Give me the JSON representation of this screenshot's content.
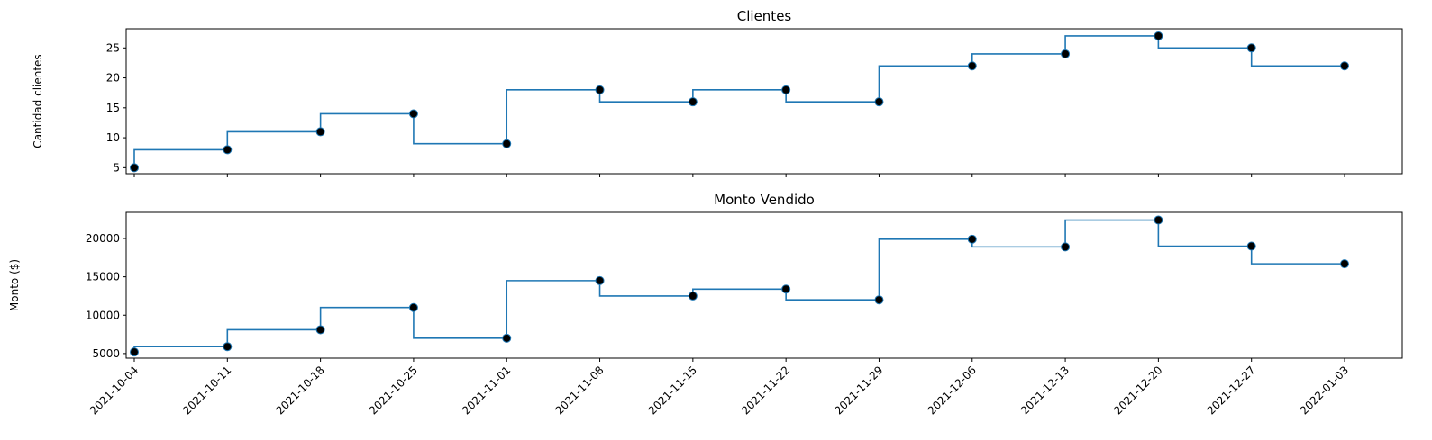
{
  "chart_data": [
    {
      "type": "line",
      "style": "step",
      "title": "Clientes",
      "xlabel": "",
      "ylabel": "Cantidad clientes",
      "x": [
        "2021-10-04",
        "2021-10-11",
        "2021-10-18",
        "2021-10-25",
        "2021-11-01",
        "2021-11-08",
        "2021-11-15",
        "2021-11-22",
        "2021-11-29",
        "2021-12-06",
        "2021-12-13",
        "2021-12-20",
        "2021-12-27",
        "2022-01-03"
      ],
      "series": [
        {
          "values": [
            5,
            8,
            11,
            14,
            9,
            18,
            16,
            18,
            16,
            22,
            24,
            27,
            25,
            22
          ]
        }
      ],
      "ylim": [
        4,
        28.2
      ],
      "yticks": [
        5,
        10,
        15,
        20,
        25
      ],
      "ytick_labels": [
        "5",
        "10",
        "15",
        "20",
        "25"
      ],
      "show_xtick_labels": false,
      "grid": false,
      "line_color": "#1f77b4",
      "marker_color": "#000000"
    },
    {
      "type": "line",
      "style": "step",
      "title": "Monto Vendido",
      "xlabel": "",
      "ylabel": "Monto ($)",
      "x": [
        "2021-10-04",
        "2021-10-11",
        "2021-10-18",
        "2021-10-25",
        "2021-11-01",
        "2021-11-08",
        "2021-11-15",
        "2021-11-22",
        "2021-11-29",
        "2021-12-06",
        "2021-12-13",
        "2021-12-20",
        "2021-12-27",
        "2022-01-03"
      ],
      "series": [
        {
          "values": [
            5200,
            5900,
            8100,
            11000,
            7000,
            14500,
            12500,
            13400,
            12000,
            19900,
            18900,
            22400,
            19000,
            16700
          ]
        }
      ],
      "ylim": [
        4400,
        23400
      ],
      "yticks": [
        5000,
        10000,
        15000,
        20000
      ],
      "ytick_labels": [
        "5000",
        "10000",
        "15000",
        "20000"
      ],
      "show_xtick_labels": true,
      "grid": false,
      "line_color": "#1f77b4",
      "marker_color": "#000000"
    }
  ]
}
